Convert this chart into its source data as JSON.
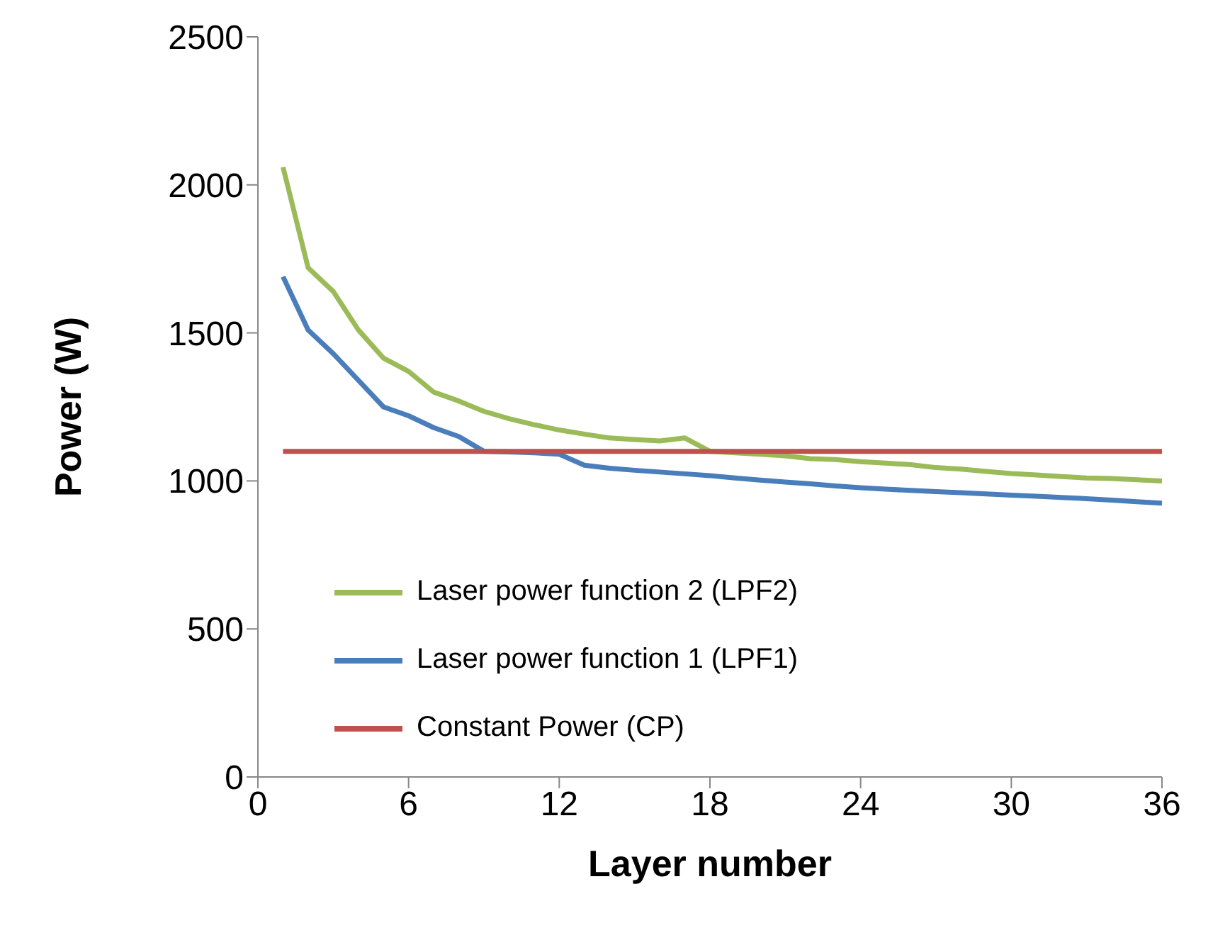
{
  "chart_data": {
    "type": "line",
    "xlabel": "Layer number",
    "ylabel": "Power (W)",
    "xlim": [
      0,
      36
    ],
    "xticks": [
      0,
      6,
      12,
      18,
      24,
      30,
      36
    ],
    "ylim": [
      0,
      2500
    ],
    "yticks": [
      0,
      500,
      1000,
      1500,
      2000,
      2500
    ],
    "grid": false,
    "legend": "bottom",
    "marker": "none",
    "line_style": "solid",
    "x": [
      1,
      2,
      3,
      4,
      5,
      6,
      7,
      8,
      9,
      10,
      11,
      12,
      13,
      14,
      15,
      16,
      17,
      18,
      19,
      20,
      21,
      22,
      23,
      24,
      25,
      26,
      27,
      28,
      29,
      30,
      31,
      32,
      33,
      34,
      35,
      36
    ],
    "series": [
      {
        "name": "Laser power function 2 (LPF2)",
        "color": "#9bbb59",
        "values": [
          2060,
          1720,
          1640,
          1510,
          1415,
          1370,
          1300,
          1270,
          1235,
          1210,
          1190,
          1172,
          1158,
          1145,
          1140,
          1135,
          1145,
          1100,
          1095,
          1090,
          1085,
          1075,
          1072,
          1065,
          1060,
          1055,
          1045,
          1040,
          1032,
          1025,
          1020,
          1015,
          1010,
          1008,
          1004,
          1000
        ]
      },
      {
        "name": "Laser power function 1 (LPF1)",
        "color": "#4a7ebb",
        "values": [
          1690,
          1510,
          1430,
          1340,
          1250,
          1220,
          1180,
          1150,
          1100,
          1098,
          1095,
          1090,
          1053,
          1043,
          1036,
          1030,
          1024,
          1018,
          1010,
          1003,
          996,
          990,
          983,
          977,
          972,
          968,
          964,
          960,
          956,
          952,
          948,
          944,
          940,
          935,
          930,
          925
        ]
      },
      {
        "name": "Constant Power (CP)",
        "color": "#c0504d",
        "values": [
          1100,
          1100,
          1100,
          1100,
          1100,
          1100,
          1100,
          1100,
          1100,
          1100,
          1100,
          1100,
          1100,
          1100,
          1100,
          1100,
          1100,
          1100,
          1100,
          1100,
          1100,
          1100,
          1100,
          1100,
          1100,
          1100,
          1100,
          1100,
          1100,
          1100,
          1100,
          1100,
          1100,
          1100,
          1100,
          1100
        ]
      }
    ]
  }
}
